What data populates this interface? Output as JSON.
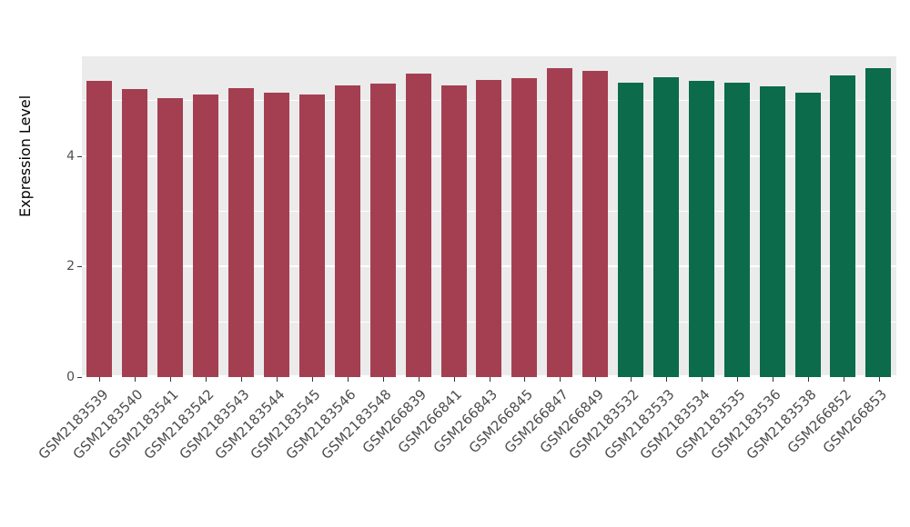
{
  "chart_data": {
    "type": "bar",
    "title": "",
    "xlabel": "",
    "ylabel": "Expression Level",
    "ylim": [
      0,
      5.8
    ],
    "yticks": [
      0,
      2,
      4
    ],
    "minor_ticks": [
      1,
      3,
      5
    ],
    "grid": true,
    "legend_position": "none",
    "panel_background": "#EBEBEB",
    "grid_color": "#FFFFFF",
    "categories": [
      "GSM2183539",
      "GSM2183540",
      "GSM2183541",
      "GSM2183542",
      "GSM2183543",
      "GSM2183544",
      "GSM2183545",
      "GSM2183546",
      "GSM2183548",
      "GSM266839",
      "GSM266841",
      "GSM266843",
      "GSM266845",
      "GSM266847",
      "GSM266849",
      "GSM2183532",
      "GSM2183533",
      "GSM2183534",
      "GSM2183535",
      "GSM2183536",
      "GSM2183538",
      "GSM266852",
      "GSM266853"
    ],
    "values": [
      5.36,
      5.21,
      5.04,
      5.11,
      5.23,
      5.14,
      5.11,
      5.28,
      5.31,
      5.49,
      5.28,
      5.38,
      5.41,
      5.58,
      5.54,
      5.33,
      5.42,
      5.35,
      5.33,
      5.25,
      5.15,
      5.45,
      5.58
    ],
    "groups": [
      "group1",
      "group1",
      "group1",
      "group1",
      "group1",
      "group1",
      "group1",
      "group1",
      "group1",
      "group1",
      "group1",
      "group1",
      "group1",
      "group1",
      "group1",
      "group2",
      "group2",
      "group2",
      "group2",
      "group2",
      "group2",
      "group2",
      "group2"
    ],
    "group_colors": {
      "group1": "#A43F52",
      "group2": "#0B6B4A"
    }
  }
}
